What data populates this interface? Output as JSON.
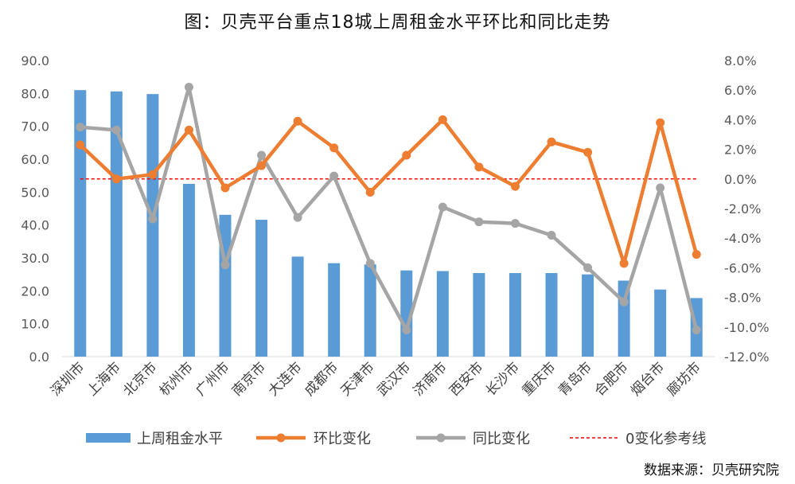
{
  "title": "图：贝壳平台重点18城上周租金水平环比和同比走势",
  "source": "数据来源：贝壳研究院",
  "chart_data": {
    "type": "bar",
    "categories": [
      "深圳市",
      "上海市",
      "北京市",
      "杭州市",
      "广州市",
      "南京市",
      "大连市",
      "成都市",
      "天津市",
      "武汉市",
      "济南市",
      "西安市",
      "长沙市",
      "重庆市",
      "青岛市",
      "合肥市",
      "烟台市",
      "廊坊市"
    ],
    "series": [
      {
        "name": "上周租金水平",
        "type": "bar",
        "axis": "left",
        "color": "#5B9BD5",
        "values": [
          81.0,
          80.6,
          79.8,
          52.5,
          43.1,
          41.6,
          30.4,
          28.4,
          28.0,
          26.2,
          26.0,
          25.4,
          25.4,
          25.4,
          25.0,
          23.1,
          20.4,
          17.8
        ]
      },
      {
        "name": "环比变化",
        "type": "line",
        "axis": "right",
        "color": "#ED7D31",
        "values": [
          2.3,
          0.0,
          0.3,
          3.3,
          -0.6,
          0.9,
          3.9,
          2.1,
          -0.9,
          1.6,
          4.0,
          0.8,
          -0.5,
          2.5,
          1.8,
          -5.7,
          3.8,
          -5.1
        ]
      },
      {
        "name": "同比变化",
        "type": "line",
        "axis": "right",
        "color": "#A5A5A5",
        "values": [
          3.5,
          3.3,
          -2.7,
          6.2,
          -5.8,
          1.6,
          -2.6,
          0.2,
          -5.7,
          -10.2,
          -1.9,
          -2.9,
          -3.0,
          -3.8,
          -6.0,
          -8.3,
          -0.6,
          -10.2
        ]
      },
      {
        "name": "0变化参考线",
        "type": "reference",
        "axis": "right",
        "color": "#FF0000",
        "value": 0
      }
    ],
    "left_axis": {
      "ylim": [
        0,
        90
      ],
      "ticks": [
        "0.0",
        "10.0",
        "20.0",
        "30.0",
        "40.0",
        "50.0",
        "60.0",
        "70.0",
        "80.0",
        "90.0"
      ]
    },
    "right_axis": {
      "ylim": [
        -12,
        8
      ],
      "ticks": [
        "-12.0%",
        "-10.0%",
        "-8.0%",
        "-6.0%",
        "-4.0%",
        "-2.0%",
        "0.0%",
        "2.0%",
        "4.0%",
        "6.0%",
        "8.0%"
      ]
    },
    "grid": false,
    "legend_position": "bottom"
  }
}
